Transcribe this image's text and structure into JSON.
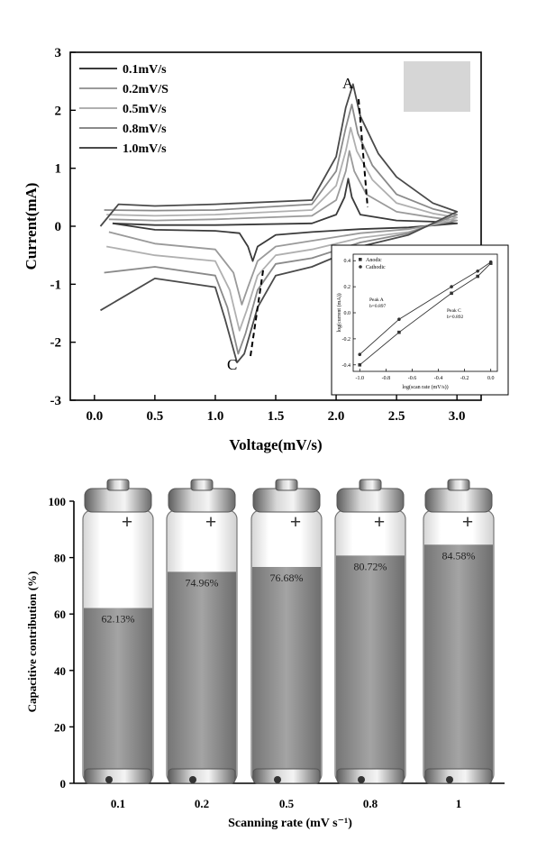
{
  "chart_data": [
    {
      "type": "line",
      "xlabel": "Voltage(mV/s)",
      "ylabel": "Current(mA)",
      "xlim": [
        -0.2,
        3.2
      ],
      "ylim": [
        -3,
        3
      ],
      "xticks": [
        "0.0",
        "0.5",
        "1.0",
        "1.5",
        "2.0",
        "2.5",
        "3.0"
      ],
      "yticks": [
        "3",
        "2",
        "1",
        "0",
        "-1",
        "-2",
        "-3"
      ],
      "annotations": [
        "A",
        "C"
      ],
      "legend_position": "top-left",
      "series": [
        {
          "name": "0.1mV/s",
          "color": "#3a3a3a",
          "x": [
            0.15,
            0.5,
            1.0,
            1.8,
            2.0,
            2.07,
            2.1,
            2.13,
            2.2,
            2.5,
            2.8,
            3.0,
            2.6,
            2.2,
            1.8,
            1.5,
            1.35,
            1.31,
            1.27,
            1.2,
            1.0,
            0.5,
            0.15
          ],
          "y": [
            0.05,
            0.02,
            0.02,
            0.05,
            0.2,
            0.5,
            0.82,
            0.5,
            0.2,
            0.1,
            0.08,
            0.05,
            -0.02,
            -0.05,
            -0.1,
            -0.15,
            -0.35,
            -0.6,
            -0.35,
            -0.12,
            -0.08,
            -0.06,
            0.05
          ]
        },
        {
          "name": "0.2mV/S",
          "color": "#9a9a9a",
          "x": [
            0.12,
            0.5,
            1.0,
            1.8,
            2.0,
            2.08,
            2.11,
            2.15,
            2.25,
            2.5,
            2.8,
            3.0,
            2.6,
            2.2,
            1.8,
            1.5,
            1.35,
            1.27,
            1.22,
            1.15,
            1.0,
            0.5,
            0.12
          ],
          "y": [
            0.12,
            0.1,
            0.12,
            0.18,
            0.45,
            0.95,
            1.3,
            0.95,
            0.55,
            0.25,
            0.15,
            0.1,
            -0.05,
            -0.12,
            -0.25,
            -0.35,
            -0.6,
            -1.05,
            -1.35,
            -0.8,
            -0.4,
            -0.3,
            -0.1
          ]
        },
        {
          "name": "0.5mV/s",
          "color": "#b0b0b0",
          "x": [
            0.1,
            0.5,
            1.0,
            1.8,
            2.0,
            2.08,
            2.12,
            2.17,
            2.3,
            2.5,
            2.8,
            3.0,
            2.6,
            2.2,
            1.8,
            1.5,
            1.35,
            1.26,
            1.2,
            1.12,
            1.0,
            0.5,
            0.1
          ],
          "y": [
            0.2,
            0.18,
            0.2,
            0.28,
            0.7,
            1.3,
            1.7,
            1.3,
            0.8,
            0.4,
            0.22,
            0.15,
            -0.1,
            -0.2,
            -0.4,
            -0.5,
            -0.85,
            -1.45,
            -1.8,
            -1.1,
            -0.6,
            -0.5,
            -0.35
          ]
        },
        {
          "name": "0.8mV/s",
          "color": "#8a8a8a",
          "x": [
            0.08,
            0.5,
            1.0,
            1.8,
            2.0,
            2.08,
            2.13,
            2.18,
            2.3,
            2.5,
            2.8,
            3.0,
            2.6,
            2.2,
            1.8,
            1.5,
            1.35,
            1.25,
            1.19,
            1.1,
            1.0,
            0.5,
            0.08
          ],
          "y": [
            0.28,
            0.27,
            0.28,
            0.38,
            0.95,
            1.7,
            2.1,
            1.6,
            1.05,
            0.55,
            0.3,
            0.2,
            -0.12,
            -0.28,
            -0.55,
            -0.65,
            -1.1,
            -1.85,
            -2.2,
            -1.4,
            -0.85,
            -0.7,
            -0.8
          ]
        },
        {
          "name": "1.0mV/s",
          "color": "#4a4a4a",
          "x": [
            0.05,
            0.2,
            0.5,
            1.0,
            1.8,
            2.0,
            2.08,
            2.14,
            2.2,
            2.35,
            2.5,
            2.8,
            3.0,
            2.6,
            2.2,
            1.8,
            1.5,
            1.35,
            1.24,
            1.18,
            1.08,
            1.0,
            0.5,
            0.05
          ],
          "y": [
            0.0,
            0.38,
            0.35,
            0.38,
            0.45,
            1.2,
            2.05,
            2.45,
            1.9,
            1.25,
            0.85,
            0.4,
            0.25,
            -0.15,
            -0.35,
            -0.7,
            -0.85,
            -1.4,
            -2.2,
            -2.35,
            -1.6,
            -1.05,
            -0.9,
            -1.45
          ]
        }
      ],
      "inset": {
        "type": "scatter",
        "xlabel": "log(scan rate (mV/s))",
        "ylabel": "log(current (mA))",
        "xticks": [
          "-1.0",
          "-0.8",
          "-0.6",
          "-0.4",
          "-0.2",
          "0.0"
        ],
        "yticks": [
          "0.4",
          "0.2",
          "0.0",
          "-0.2",
          "-0.4"
        ],
        "legend": [
          "Anodic",
          "Cathodic"
        ],
        "labels": [
          "Peak A\nb=0.897",
          "Peak C\nb=0.892"
        ],
        "series": [
          {
            "name": "Anodic",
            "x": [
              -1.0,
              -0.7,
              -0.3,
              -0.1,
              0.0
            ],
            "y": [
              -0.4,
              -0.15,
              0.15,
              0.28,
              0.38
            ]
          },
          {
            "name": "Cathodic",
            "x": [
              -1.0,
              -0.7,
              -0.3,
              -0.1,
              0.0
            ],
            "y": [
              -0.32,
              -0.05,
              0.2,
              0.32,
              0.39
            ]
          }
        ]
      }
    },
    {
      "type": "bar",
      "xlabel": "Scanning rate (mV s⁻¹)",
      "ylabel": "Capacitive contribution (%)",
      "ylim": [
        0,
        100
      ],
      "yticks": [
        "0",
        "20",
        "40",
        "60",
        "80",
        "100"
      ],
      "categories": [
        "0.1",
        "0.2",
        "0.5",
        "0.8",
        "1"
      ],
      "values": [
        62.13,
        74.96,
        76.68,
        80.72,
        84.58
      ],
      "labels": [
        "62.13%",
        "74.96%",
        "76.68%",
        "80.72%",
        "84.58%"
      ],
      "battery_symbol": "+",
      "fill_color": "#8c8c8c"
    }
  ]
}
